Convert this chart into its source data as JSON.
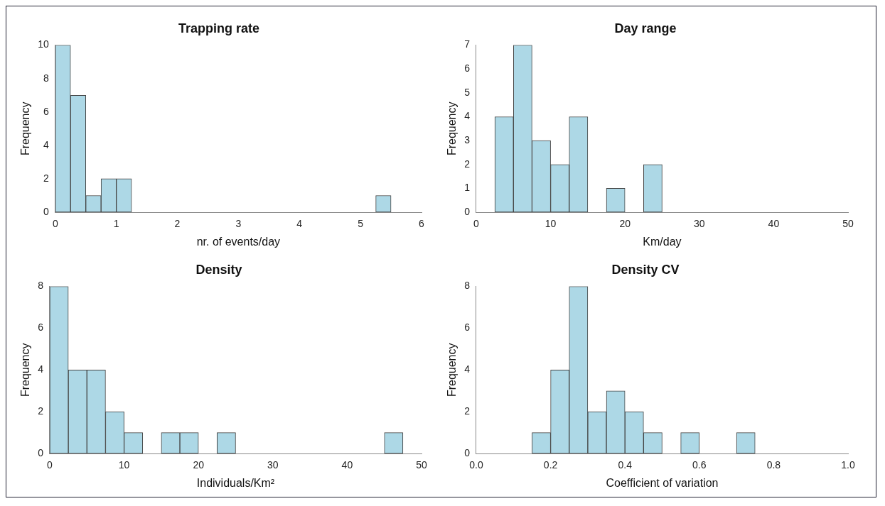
{
  "chart_data": [
    {
      "type": "histogram",
      "title": "Trapping rate",
      "xlabel": "nr. of events/day",
      "ylabel": "Frequency",
      "bins": [
        0,
        0.25,
        0.5,
        0.75,
        1,
        1.25,
        1.5,
        1.75,
        2,
        2.25,
        2.5,
        2.75,
        3,
        3.25,
        3.5,
        3.75,
        4,
        4.25,
        4.5,
        4.75,
        5,
        5.25,
        5.5,
        5.75,
        6
      ],
      "values": [
        10,
        7,
        1,
        2,
        2,
        0,
        0,
        0,
        0,
        0,
        0,
        0,
        0,
        0,
        0,
        0,
        0,
        0,
        0,
        0,
        0,
        1,
        0,
        0
      ],
      "color": "#add8e6",
      "xlim": [
        0,
        6
      ],
      "xticks": [
        0,
        1,
        2,
        3,
        4,
        5,
        6
      ],
      "ylim": [
        0,
        10
      ],
      "yticks": [
        0,
        2,
        4,
        6,
        8,
        10
      ],
      "grid": false
    },
    {
      "type": "histogram",
      "title": "Day range",
      "xlabel": "Km/day",
      "ylabel": "Frequency",
      "bins": [
        0,
        2.5,
        5,
        7.5,
        10,
        12.5,
        15,
        17.5,
        20,
        22.5,
        25,
        27.5,
        30,
        32.5,
        35,
        37.5,
        40,
        42.5,
        45,
        47.5,
        50
      ],
      "values": [
        0,
        4,
        7,
        3,
        2,
        4,
        0,
        1,
        0,
        2,
        0,
        0,
        0,
        0,
        0,
        0,
        0,
        0,
        0,
        0
      ],
      "color": "#add8e6",
      "xlim": [
        0,
        50
      ],
      "xticks": [
        0,
        10,
        20,
        30,
        40,
        50
      ],
      "ylim": [
        0,
        7
      ],
      "yticks": [
        0,
        1,
        2,
        3,
        4,
        5,
        6,
        7
      ],
      "grid": false
    },
    {
      "type": "histogram",
      "title": "Density",
      "xlabel": "Individuals/Km²",
      "ylabel": "Frequency",
      "bins": [
        0,
        2.5,
        5,
        7.5,
        10,
        12.5,
        15,
        17.5,
        20,
        22.5,
        25,
        27.5,
        30,
        32.5,
        35,
        37.5,
        40,
        42.5,
        45,
        47.5,
        50
      ],
      "values": [
        8,
        4,
        4,
        2,
        1,
        0,
        1,
        1,
        0,
        1,
        0,
        0,
        0,
        0,
        0,
        0,
        0,
        0,
        1,
        0
      ],
      "color": "#add8e6",
      "xlim": [
        0,
        50
      ],
      "xticks": [
        0,
        10,
        20,
        30,
        40,
        50
      ],
      "ylim": [
        0,
        8
      ],
      "yticks": [
        0,
        2,
        4,
        6,
        8
      ],
      "grid": false
    },
    {
      "type": "histogram",
      "title": "Density CV",
      "xlabel": "Coefficient of variation",
      "ylabel": "Frequency",
      "bins": [
        0,
        0.05,
        0.1,
        0.15,
        0.2,
        0.25,
        0.3,
        0.35,
        0.4,
        0.45,
        0.5,
        0.55,
        0.6,
        0.65,
        0.7,
        0.75,
        0.8,
        0.85,
        0.9,
        0.95,
        1
      ],
      "values": [
        0,
        0,
        0,
        1,
        4,
        8,
        2,
        3,
        2,
        1,
        0,
        1,
        0,
        0,
        1,
        0,
        0,
        0,
        0,
        0
      ],
      "color": "#add8e6",
      "xlim": [
        0,
        1
      ],
      "xticks": [
        {
          "value": 0,
          "label": "0.0"
        },
        {
          "value": 0.2,
          "label": "0.2"
        },
        {
          "value": 0.4,
          "label": "0.4"
        },
        {
          "value": 0.6,
          "label": "0.6"
        },
        {
          "value": 0.8,
          "label": "0.8"
        },
        {
          "value": 1,
          "label": "1.0"
        }
      ],
      "ylim": [
        0,
        8
      ],
      "yticks": [
        0,
        2,
        4,
        6,
        8
      ],
      "grid": false
    }
  ]
}
